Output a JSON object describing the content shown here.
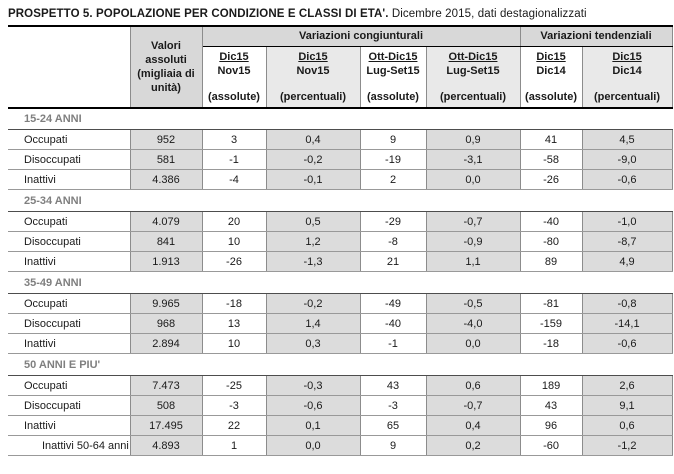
{
  "title": {
    "bold": "PROSPETTO 5. POPOLAZIONE PER CONDIZIONE E CLASSI DI ETA'.",
    "normal": "Dicembre 2015, dati destagionalizzati"
  },
  "colors": {
    "header_band_gray": "#d8d8d8",
    "header_shaded_cell": "#e9e9e9",
    "data_shaded_column": "#dcdcdc",
    "section_label_gray": "#7f7f7f",
    "grid_line": "#8c8c8c"
  },
  "table": {
    "valori_header": "Valori\nassoluti\n(migliaia di\nunità)",
    "groups": [
      {
        "label": "Variazioni congiunturali",
        "span": 4
      },
      {
        "label": "Variazioni tendenziali",
        "span": 2
      }
    ],
    "columns": [
      {
        "top": "Dic15",
        "bottom": "Nov15",
        "unit": "(assolute)",
        "shaded": false
      },
      {
        "top": "Dic15",
        "bottom": "Nov15",
        "unit": "(percentuali)",
        "shaded": true
      },
      {
        "top": "Ott-Dic15",
        "bottom": "Lug-Set15",
        "unit": "(assolute)",
        "shaded": false
      },
      {
        "top": "Ott-Dic15",
        "bottom": "Lug-Set15",
        "unit": "(percentuali)",
        "shaded": true
      },
      {
        "top": "Dic15",
        "bottom": "Dic14",
        "unit": "(assolute)",
        "shaded": false
      },
      {
        "top": "Dic15",
        "bottom": "Dic14",
        "unit": "(percentuali)",
        "shaded": true
      }
    ],
    "sections": [
      {
        "header": "15-24 ANNI",
        "rows": [
          {
            "label": "Occupati",
            "indent": false,
            "values": [
              "952",
              "3",
              "0,4",
              "9",
              "0,9",
              "41",
              "4,5"
            ]
          },
          {
            "label": "Disoccupati",
            "indent": false,
            "values": [
              "581",
              "-1",
              "-0,2",
              "-19",
              "-3,1",
              "-58",
              "-9,0"
            ]
          },
          {
            "label": "Inattivi",
            "indent": false,
            "values": [
              "4.386",
              "-4",
              "-0,1",
              "2",
              "0,0",
              "-26",
              "-0,6"
            ]
          }
        ]
      },
      {
        "header": "25-34 ANNI",
        "rows": [
          {
            "label": "Occupati",
            "indent": false,
            "values": [
              "4.079",
              "20",
              "0,5",
              "-29",
              "-0,7",
              "-40",
              "-1,0"
            ]
          },
          {
            "label": "Disoccupati",
            "indent": false,
            "values": [
              "841",
              "10",
              "1,2",
              "-8",
              "-0,9",
              "-80",
              "-8,7"
            ]
          },
          {
            "label": "Inattivi",
            "indent": false,
            "values": [
              "1.913",
              "-26",
              "-1,3",
              "21",
              "1,1",
              "89",
              "4,9"
            ]
          }
        ]
      },
      {
        "header": "35-49 ANNI",
        "rows": [
          {
            "label": "Occupati",
            "indent": false,
            "values": [
              "9.965",
              "-18",
              "-0,2",
              "-49",
              "-0,5",
              "-81",
              "-0,8"
            ]
          },
          {
            "label": "Disoccupati",
            "indent": false,
            "values": [
              "968",
              "13",
              "1,4",
              "-40",
              "-4,0",
              "-159",
              "-14,1"
            ]
          },
          {
            "label": "Inattivi",
            "indent": false,
            "values": [
              "2.894",
              "10",
              "0,3",
              "-1",
              "0,0",
              "-18",
              "-0,6"
            ]
          }
        ]
      },
      {
        "header": "50 ANNI E PIU'",
        "rows": [
          {
            "label": "Occupati",
            "indent": false,
            "values": [
              "7.473",
              "-25",
              "-0,3",
              "43",
              "0,6",
              "189",
              "2,6"
            ]
          },
          {
            "label": "Disoccupati",
            "indent": false,
            "values": [
              "508",
              "-3",
              "-0,6",
              "-3",
              "-0,7",
              "43",
              "9,1"
            ]
          },
          {
            "label": "Inattivi",
            "indent": false,
            "values": [
              "17.495",
              "22",
              "0,1",
              "65",
              "0,4",
              "96",
              "0,6"
            ]
          },
          {
            "label": "Inattivi 50-64 anni",
            "indent": true,
            "values": [
              "4.893",
              "1",
              "0,0",
              "9",
              "0,2",
              "-60",
              "-1,2"
            ]
          }
        ]
      }
    ]
  }
}
